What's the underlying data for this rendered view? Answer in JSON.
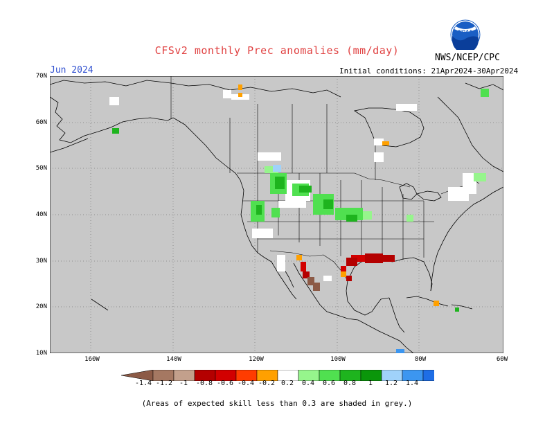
{
  "header": {
    "title": "CFSv2 monthly Prec anomalies (mm/day)",
    "org": "NWS/NCEP/CPC",
    "month": "Jun 2024",
    "init": "Initial conditions: 21Apr2024-30Apr2024",
    "logo_text": "NOAA"
  },
  "map": {
    "lat_labels": [
      "70N",
      "60N",
      "50N",
      "40N",
      "30N",
      "20N",
      "10N"
    ],
    "lon_labels": [
      "160W",
      "140W",
      "120W",
      "100W",
      "80W",
      "60W"
    ],
    "land_color": "#c8c8c8",
    "ocean_color": "#c8c8c8"
  },
  "colorbar": {
    "labels": [
      "-1.4",
      "-1.2",
      "-1",
      "-0.8",
      "-0.6",
      "-0.4",
      "-0.2",
      "0.2",
      "0.4",
      "0.6",
      "0.8",
      "1",
      "1.2",
      "1.4"
    ],
    "colors": [
      "#8c5a46",
      "#a57862",
      "#c3a08c",
      "#b40000",
      "#d20000",
      "#ff3c00",
      "#ffa000",
      "#ffffff",
      "#96f58c",
      "#50e050",
      "#1eb41e",
      "#0a960a",
      "#a0d2fa",
      "#3c96f0",
      "#1e6ee6"
    ]
  },
  "footer": {
    "note": "(Areas of expected skill less than 0.3 are shaded in grey.)"
  }
}
